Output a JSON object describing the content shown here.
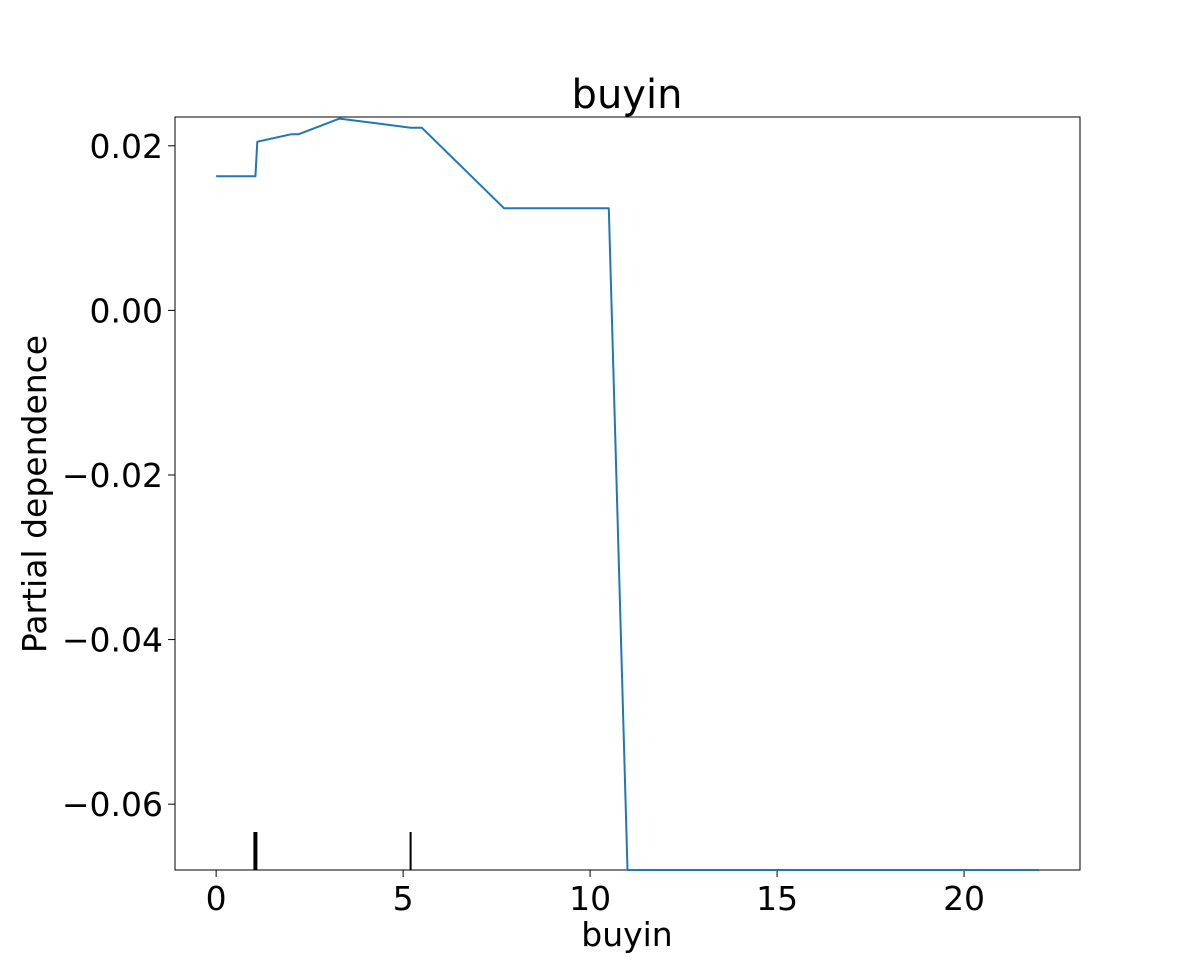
{
  "chart_data": {
    "type": "line",
    "title": "buyin",
    "xlabel": "buyin",
    "ylabel": "Partial dependence",
    "xlim": [
      -1.1,
      23.1
    ],
    "ylim": [
      -0.068,
      0.0235
    ],
    "x_ticks": [
      0,
      5,
      10,
      15,
      20
    ],
    "x_tick_labels": [
      "0",
      "5",
      "10",
      "15",
      "20"
    ],
    "y_ticks": [
      0.02,
      0.0,
      -0.02,
      -0.04,
      -0.06
    ],
    "y_tick_labels": [
      "0.02",
      "0.00",
      "−0.02",
      "−0.04",
      "−0.06"
    ],
    "grid": false,
    "series": [
      {
        "color": "#1f77b4",
        "x": [
          0.0,
          1.05,
          1.1,
          2.0,
          2.2,
          3.3,
          5.2,
          5.5,
          7.7,
          10.5,
          11.0,
          22.0
        ],
        "y": [
          0.0163,
          0.0163,
          0.0205,
          0.0214,
          0.0214,
          0.0233,
          0.0222,
          0.0222,
          0.0124,
          0.0124,
          -0.068,
          -0.068
        ]
      }
    ],
    "rug": [
      1.05,
      5.2
    ]
  }
}
